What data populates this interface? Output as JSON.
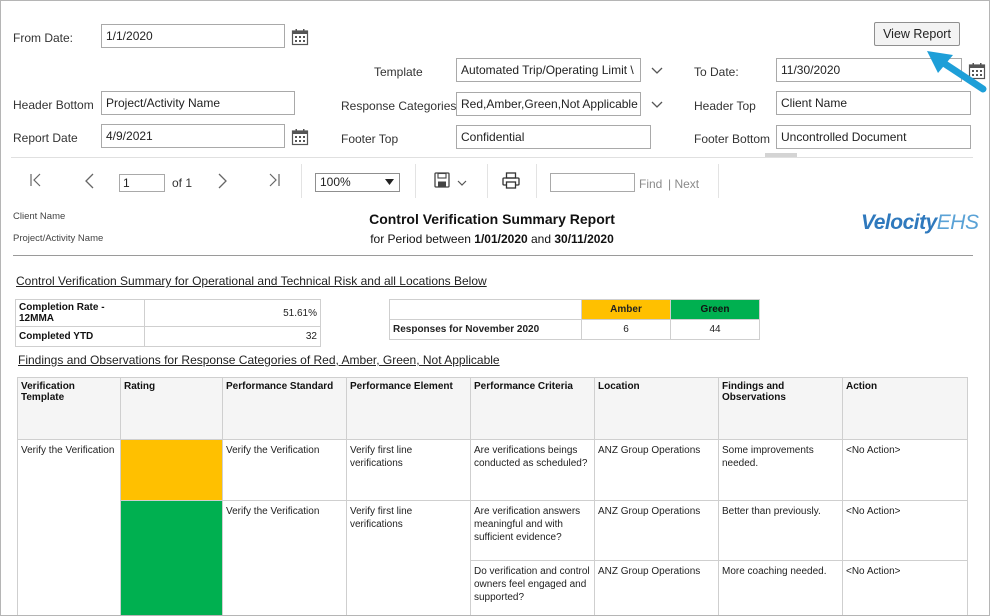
{
  "params": {
    "from_date_label": "From Date:",
    "from_date_value": "1/1/2020",
    "template_label": "Template",
    "template_value": "Automated Trip/Operating Limit \\",
    "to_date_label": "To Date:",
    "to_date_value": "11/30/2020",
    "header_bottom_label": "Header Bottom",
    "header_bottom_value": "Project/Activity Name",
    "response_categories_label": "Response Categories",
    "response_categories_value": "Red,Amber,Green,Not Applicable",
    "header_top_label": "Header Top",
    "header_top_value": "Client Name",
    "report_date_label": "Report Date",
    "report_date_value": "4/9/2021",
    "footer_top_label": "Footer Top",
    "footer_top_value": "Confidential",
    "footer_bottom_label": "Footer Bottom",
    "footer_bottom_value": "Uncontrolled Document",
    "view_report_label": "View Report"
  },
  "toolbar": {
    "page_value": "1",
    "of_label": "of 1",
    "zoom_value": "100%",
    "find_label": "Find",
    "next_label": "| Next"
  },
  "report": {
    "client_name": "Client Name",
    "project_name": "Project/Activity Name",
    "title": "Control Verification Summary Report",
    "subtitle_prefix": "for Period between ",
    "period_start": "1/01/2020",
    "subtitle_and": " and ",
    "period_end": "30/11/2020",
    "logo_velocity": "Velocity",
    "logo_ehs": "EHS",
    "summary_heading": "Control Verification Summary for Operational and Technical Risk and all Locations Below",
    "kpi": [
      {
        "label": "Completion Rate - 12MMA",
        "value": "51.61%"
      },
      {
        "label": "Completed YTD",
        "value": "32"
      }
    ],
    "responses": {
      "amber_header": "Amber",
      "green_header": "Green",
      "row_label": "Responses for November 2020",
      "amber_value": "6",
      "green_value": "44"
    },
    "findings_heading": "Findings and Observations for Response Categories of Red, Amber, Green, Not Applicable",
    "columns": [
      "Verification Template",
      "Rating",
      "Performance Standard",
      "Performance Element",
      "Performance Criteria",
      "Location",
      "Findings and Observations",
      "Action"
    ],
    "rows": [
      {
        "template": "Verify the Verification",
        "rating": "amber",
        "standard": "Verify the Verification",
        "element": "Verify first line verifications",
        "criteria": "Are verifications beings conducted as scheduled?",
        "location": "ANZ Group Operations",
        "findings": "Some improvements needed.",
        "action": "<No Action>"
      },
      {
        "template": "",
        "rating": "green",
        "standard": "Verify the Verification",
        "element": "Verify first line verifications",
        "criteria": "Are verification answers meaningful and with sufficient evidence?",
        "location": "ANZ Group Operations",
        "findings": "Better than previously.",
        "action": "<No Action>"
      },
      {
        "template": "",
        "rating": "green",
        "standard": "",
        "element": "",
        "criteria": "Do verification and control owners feel engaged and supported?",
        "location": "ANZ Group Operations",
        "findings": "More coaching needed.",
        "action": "<No Action>"
      }
    ]
  },
  "colors": {
    "amber": "#ffc000",
    "green": "#00b050",
    "logo": "#2f79bd",
    "arrow": "#1e9fd8"
  }
}
